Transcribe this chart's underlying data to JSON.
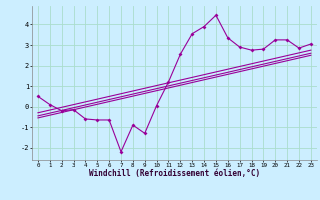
{
  "xlabel": "Windchill (Refroidissement éolien,°C)",
  "bg_color": "#cceeff",
  "grid_color": "#aaddcc",
  "line_color": "#990099",
  "xlim": [
    -0.5,
    23.5
  ],
  "ylim": [
    -2.6,
    4.9
  ],
  "yticks": [
    -2,
    -1,
    0,
    1,
    2,
    3,
    4
  ],
  "xticks": [
    0,
    1,
    2,
    3,
    4,
    5,
    6,
    7,
    8,
    9,
    10,
    11,
    12,
    13,
    14,
    15,
    16,
    17,
    18,
    19,
    20,
    21,
    22,
    23
  ],
  "scatter_x": [
    0,
    1,
    2,
    3,
    4,
    5,
    6,
    7,
    8,
    9,
    10,
    11,
    12,
    13,
    14,
    15,
    16,
    17,
    18,
    19,
    20,
    21,
    22,
    23
  ],
  "scatter_y": [
    0.5,
    0.1,
    -0.2,
    -0.15,
    -0.6,
    -0.65,
    -0.65,
    -2.2,
    -0.9,
    -1.3,
    0.05,
    1.2,
    2.55,
    3.55,
    3.9,
    4.45,
    3.35,
    2.9,
    2.75,
    2.8,
    3.25,
    3.25,
    2.85,
    3.05
  ],
  "trend1_x": [
    0,
    23
  ],
  "trend1_y": [
    -0.55,
    2.5
  ],
  "trend2_x": [
    0,
    23
  ],
  "trend2_y": [
    -0.45,
    2.6
  ],
  "trend3_x": [
    0,
    23
  ],
  "trend3_y": [
    -0.3,
    2.75
  ]
}
